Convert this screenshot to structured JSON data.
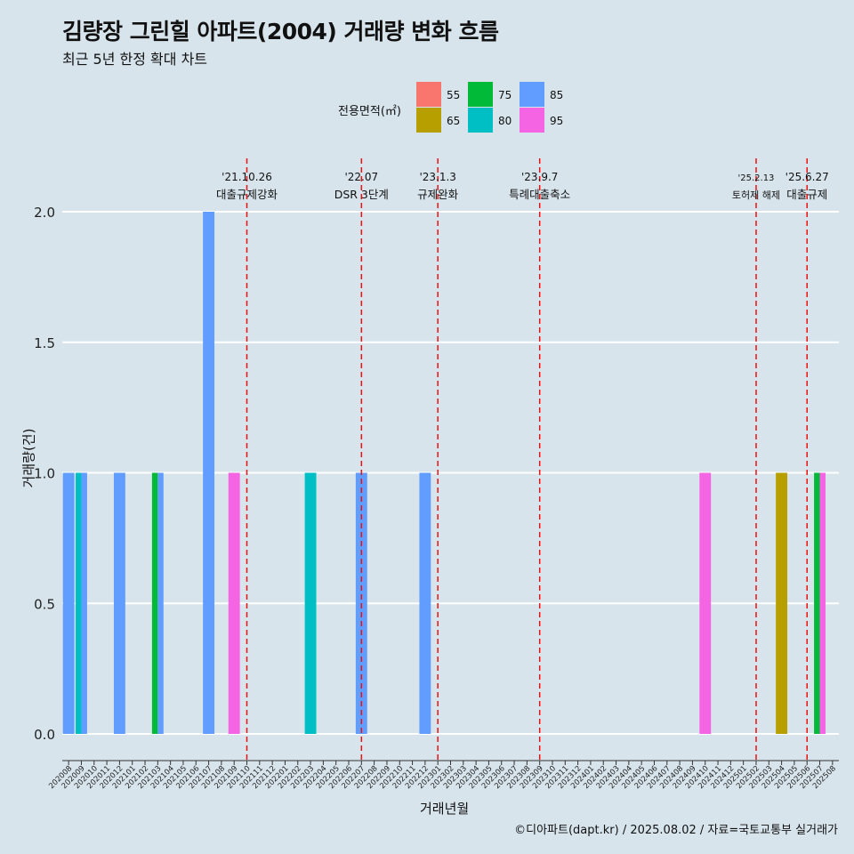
{
  "title": "김량장 그린힐 아파트(2004) 거래량 변화 흐름",
  "subtitle": "최근 5년 한정 확대 차트",
  "caption": "©디아파트(dapt.kr) / 2025.08.02 / 자료=국토교통부 실거래가",
  "legend": {
    "title": "전용면적(㎡)",
    "items": [
      {
        "label": "55",
        "color": "#f8766d"
      },
      {
        "label": "65",
        "color": "#b79f00"
      },
      {
        "label": "75",
        "color": "#00ba38"
      },
      {
        "label": "80",
        "color": "#00bfc4"
      },
      {
        "label": "85",
        "color": "#619cff"
      },
      {
        "label": "95",
        "color": "#f564e3"
      }
    ]
  },
  "chart_data": {
    "type": "bar",
    "xlabel": "거래년월",
    "ylabel": "거래량(건)",
    "ylim": [
      0,
      2
    ],
    "yticks": [
      "0.0",
      "0.5",
      "1.0",
      "1.5",
      "2.0"
    ],
    "categories": [
      "202008",
      "202009",
      "202010",
      "202011",
      "202012",
      "202101",
      "202102",
      "202103",
      "202104",
      "202105",
      "202106",
      "202107",
      "202108",
      "202109",
      "202110",
      "202111",
      "202112",
      "202201",
      "202202",
      "202203",
      "202204",
      "202205",
      "202206",
      "202207",
      "202208",
      "202209",
      "202210",
      "202211",
      "202212",
      "202301",
      "202302",
      "202303",
      "202304",
      "202305",
      "202306",
      "202307",
      "202308",
      "202309",
      "202310",
      "202311",
      "202312",
      "202401",
      "202402",
      "202403",
      "202404",
      "202405",
      "202406",
      "202407",
      "202408",
      "202409",
      "202410",
      "202411",
      "202412",
      "202501",
      "202502",
      "202503",
      "202504",
      "202505",
      "202506",
      "202507",
      "202508"
    ],
    "bars": [
      {
        "month": "202008",
        "area": "85",
        "value": 1
      },
      {
        "month": "202009",
        "area": "80",
        "value": 1
      },
      {
        "month": "202009",
        "area": "85",
        "value": 1
      },
      {
        "month": "202012",
        "area": "85",
        "value": 1
      },
      {
        "month": "202103",
        "area": "75",
        "value": 1
      },
      {
        "month": "202103",
        "area": "85",
        "value": 1
      },
      {
        "month": "202107",
        "area": "85",
        "value": 2
      },
      {
        "month": "202109",
        "area": "95",
        "value": 1
      },
      {
        "month": "202203",
        "area": "80",
        "value": 1
      },
      {
        "month": "202207",
        "area": "85",
        "value": 1
      },
      {
        "month": "202212",
        "area": "85",
        "value": 1
      },
      {
        "month": "202410",
        "area": "95",
        "value": 1
      },
      {
        "month": "202504",
        "area": "65",
        "value": 1
      },
      {
        "month": "202507",
        "area": "75",
        "value": 1
      },
      {
        "month": "202507",
        "area": "95",
        "value": 1
      }
    ],
    "events": [
      {
        "date": "'21.10.26",
        "label": "대출규제강화",
        "month": "202110"
      },
      {
        "date": "'22.07",
        "label": "DSR 3단계",
        "month": "202207"
      },
      {
        "date": "'23.1.3",
        "label": "규제완화",
        "month": "202301"
      },
      {
        "date": "'23.9.7",
        "label": "특례대출축소",
        "month": "202309"
      },
      {
        "date": "'25.2.13",
        "label": "토허제 해제",
        "month": "202502"
      },
      {
        "date": "'25.6.27",
        "label": "대출규제",
        "month": "202506"
      }
    ]
  }
}
